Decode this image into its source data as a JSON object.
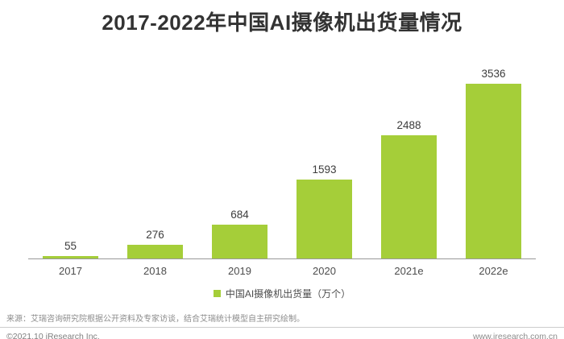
{
  "page": {
    "title": "2017-2022年中国AI摄像机出货量情况"
  },
  "chart_data": {
    "type": "bar",
    "title": "2017-2022年中国AI摄像机出货量情况",
    "categories": [
      "2017",
      "2018",
      "2019",
      "2020",
      "2021e",
      "2022e"
    ],
    "values": [
      55,
      276,
      684,
      1593,
      2488,
      3536
    ],
    "series_name": "中国AI摄像机出货量（万个）",
    "ylim": [
      0,
      3536
    ],
    "bar_color": "#a5ce39",
    "grid": false,
    "legend_position": "bottom",
    "data_labels": true
  },
  "legend": {
    "swatch_color": "#a5ce39",
    "label": "中国AI摄像机出货量（万个）"
  },
  "footer": {
    "source_note": "来源：艾瑞咨询研究院根据公开资料及专家访谈，结合艾瑞统计模型自主研究绘制。",
    "copyright": "©2021.10 iResearch Inc.",
    "website": "www.iresearch.com.cn"
  },
  "colors": {
    "bar": "#a5ce39",
    "title_text": "#333333",
    "axis_line": "#999999",
    "value_label": "#3d3d3d",
    "category_label": "#4d4d4d",
    "muted_text": "#8c8c8c"
  }
}
